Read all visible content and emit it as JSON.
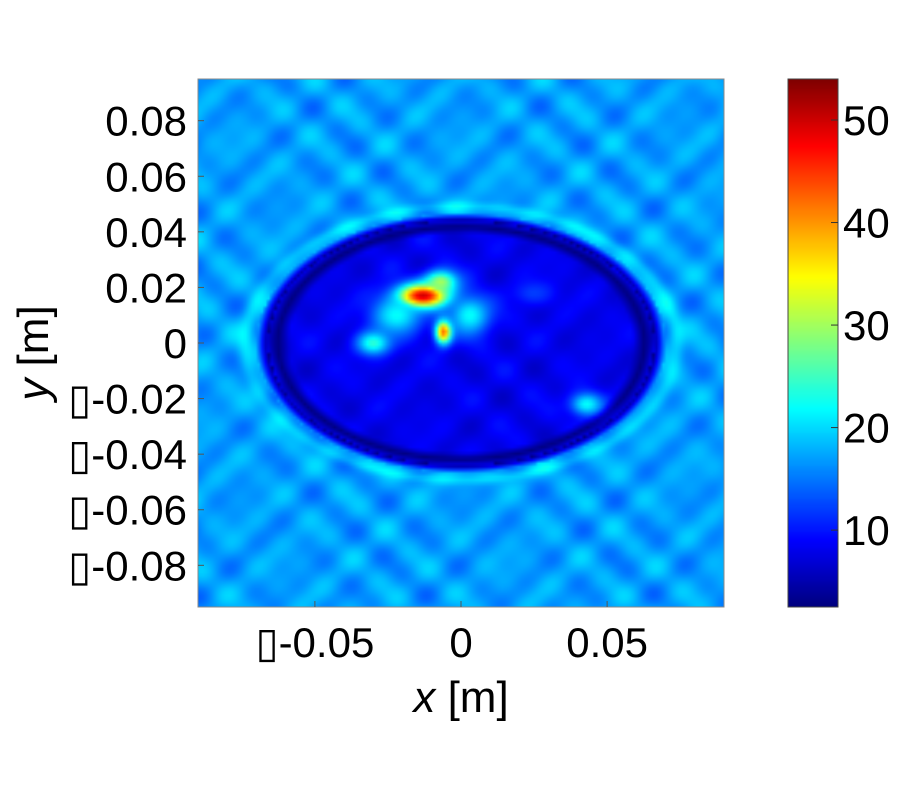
{
  "chart_data": {
    "type": "heatmap",
    "title": "",
    "xlabel": {
      "var": "x",
      "unit": "[m]"
    },
    "ylabel": {
      "var": "y",
      "unit": "[m]"
    },
    "xlim": [
      -0.09,
      0.09
    ],
    "ylim": [
      -0.095,
      0.095
    ],
    "x_ticks": [
      {
        "value": -0.05,
        "label": "▯-0.05"
      },
      {
        "value": 0,
        "label": "0"
      },
      {
        "value": 0.05,
        "label": "0.05"
      }
    ],
    "y_ticks": [
      {
        "value": 0.08,
        "label": "0.08"
      },
      {
        "value": 0.06,
        "label": "0.06"
      },
      {
        "value": 0.04,
        "label": "0.04"
      },
      {
        "value": 0.02,
        "label": "0.02"
      },
      {
        "value": 0,
        "label": "0"
      },
      {
        "value": -0.02,
        "label": "▯-0.02"
      },
      {
        "value": -0.04,
        "label": "▯-0.04"
      },
      {
        "value": -0.06,
        "label": "▯-0.06"
      },
      {
        "value": -0.08,
        "label": "▯-0.08"
      }
    ],
    "colorbar": {
      "colormap": "jet",
      "range": [
        2.5,
        54
      ],
      "ticks": [
        {
          "value": 10,
          "label": "10"
        },
        {
          "value": 20,
          "label": "20"
        },
        {
          "value": 30,
          "label": "30"
        },
        {
          "value": 40,
          "label": "40"
        },
        {
          "value": 50,
          "label": "50"
        }
      ]
    },
    "field": {
      "background_value": 17,
      "background_variation": 3,
      "ellipse": {
        "cx": 0.0,
        "cy": 0.0,
        "rx": 0.066,
        "ry": 0.044
      },
      "ellipse_rim_value": 2.5,
      "ellipse_inner_value": 8,
      "halo_value": 20,
      "hotspots": [
        {
          "x": -0.013,
          "y": 0.017,
          "value": 50,
          "sx": 0.006,
          "sy": 0.003
        },
        {
          "x": -0.007,
          "y": 0.022,
          "value": 30,
          "sx": 0.004,
          "sy": 0.003
        },
        {
          "x": -0.006,
          "y": 0.004,
          "value": 42,
          "sx": 0.002,
          "sy": 0.003
        },
        {
          "x": -0.03,
          "y": 0.0,
          "value": 24,
          "sx": 0.004,
          "sy": 0.003
        },
        {
          "x": -0.022,
          "y": 0.01,
          "value": 22,
          "sx": 0.006,
          "sy": 0.005
        },
        {
          "x": 0.003,
          "y": 0.01,
          "value": 22,
          "sx": 0.005,
          "sy": 0.005
        },
        {
          "x": 0.043,
          "y": -0.022,
          "value": 22,
          "sx": 0.004,
          "sy": 0.003
        },
        {
          "x": 0.025,
          "y": 0.018,
          "value": 12,
          "sx": 0.005,
          "sy": 0.003
        }
      ]
    }
  }
}
